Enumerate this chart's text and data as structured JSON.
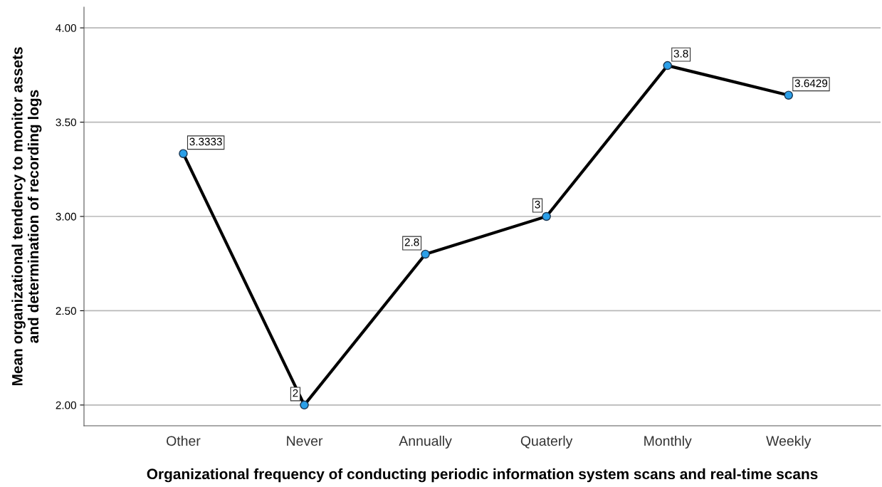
{
  "chart_data": {
    "type": "line",
    "xlabel": "Organizational frequency of conducting periodic information system scans and real-time scans",
    "ylabel": "Mean organizational tendency to monitor assets\nand determination of recording logs",
    "categories": [
      "Other",
      "Never",
      "Annually",
      "Quaterly",
      "Monthly",
      "Weekly"
    ],
    "series": [
      {
        "color": "#000000",
        "values": [
          3.3333,
          2,
          2.8,
          3,
          3.8,
          3.6429
        ],
        "value_labels": [
          "3.3333",
          "2",
          "2.8",
          "3",
          "3.8",
          "3.6429"
        ]
      }
    ],
    "ylim": [
      1.89,
      4.11
    ],
    "yticks": [
      {
        "value": 2,
        "label": "2.00"
      },
      {
        "value": 2.5,
        "label": "2.50"
      },
      {
        "value": 3,
        "label": "3.00"
      },
      {
        "value": 3.5,
        "label": "3.50"
      },
      {
        "value": 4,
        "label": "4.00"
      }
    ],
    "grid": "y",
    "marker": "circle",
    "line_style": "solid",
    "legend": false
  }
}
